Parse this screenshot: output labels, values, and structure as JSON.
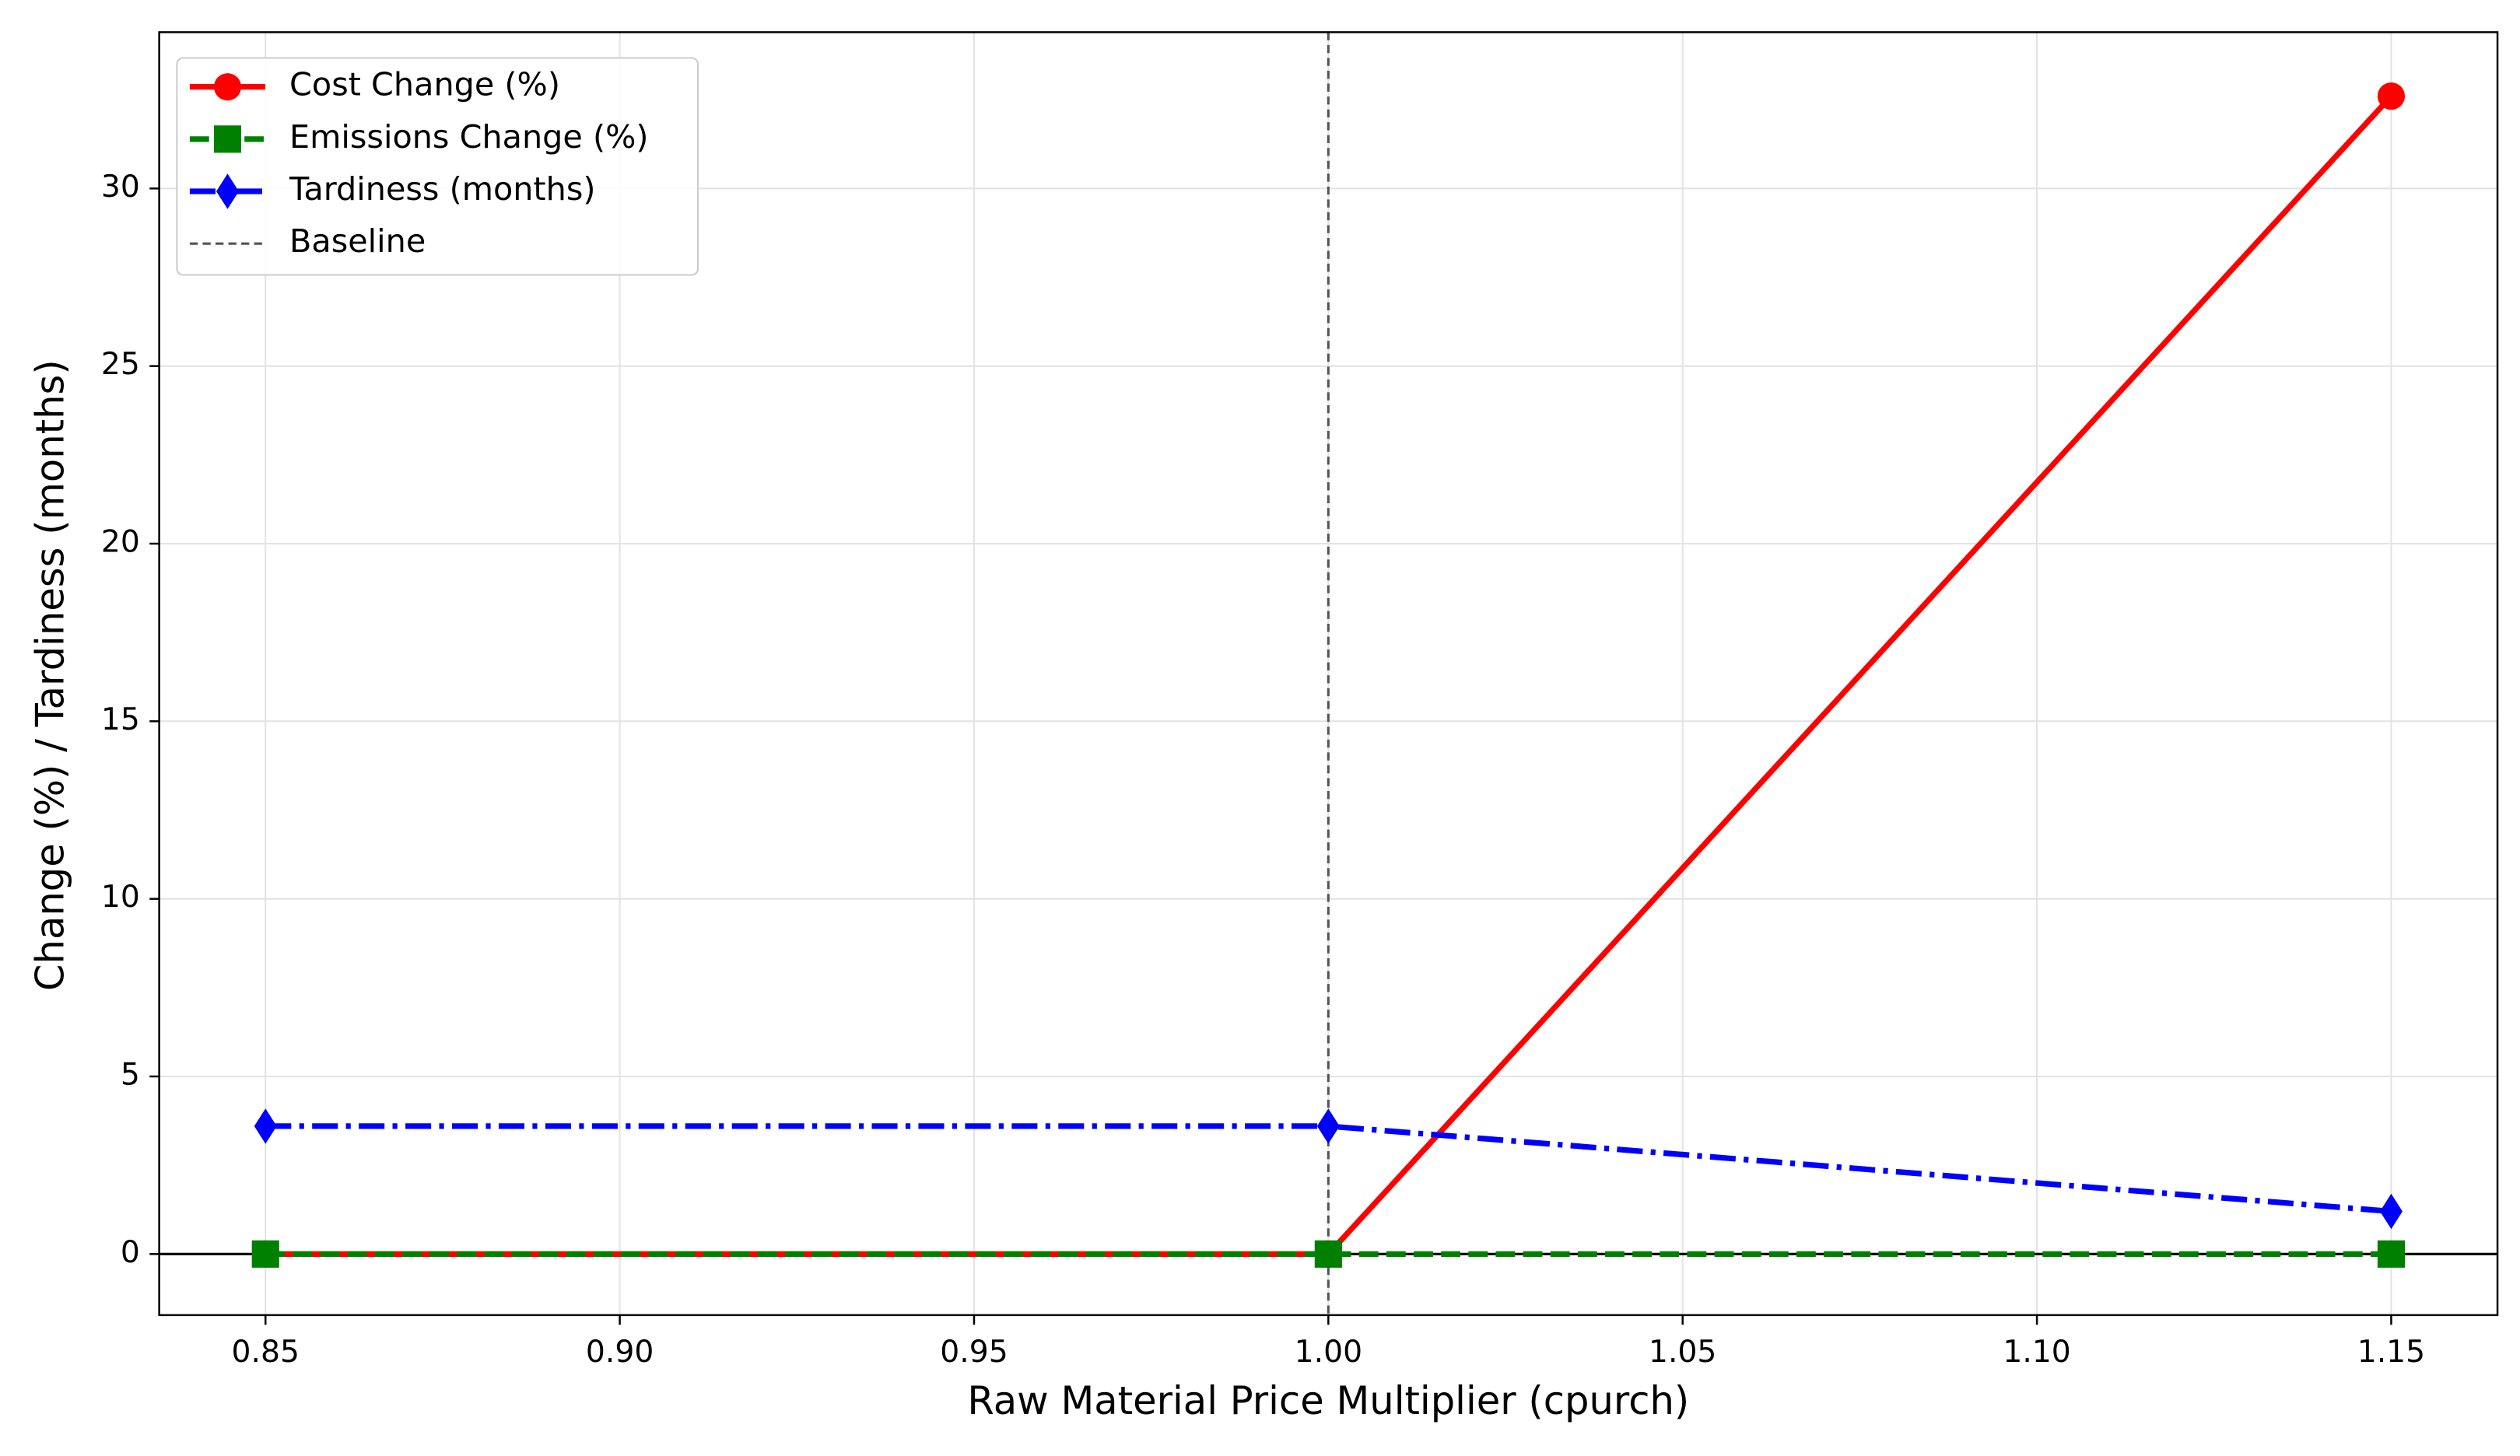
{
  "chart_data": {
    "type": "line",
    "x_label": "Raw Material Price Multiplier (cpurch)",
    "y_label": "Change (%) / Tardiness (months)",
    "x": [
      0.85,
      1.0,
      1.15
    ],
    "series": [
      {
        "name": "Cost Change (%)",
        "color": "#ff0000",
        "marker": "circle",
        "linestyle": "solid",
        "values": [
          0,
          0,
          32.6
        ]
      },
      {
        "name": "Emissions Change (%)",
        "color": "#008000",
        "marker": "square",
        "linestyle": "dashed",
        "values": [
          0,
          0,
          0
        ]
      },
      {
        "name": "Tardiness (months)",
        "color": "#0000ff",
        "marker": "diamond",
        "linestyle": "dashdot",
        "values": [
          3.6,
          3.6,
          1.2
        ]
      }
    ],
    "baseline": {
      "name": "Baseline",
      "x": 1.0,
      "color": "#555555"
    },
    "xlim": [
      0.835,
      1.165
    ],
    "ylim": [
      -1.72,
      34.4
    ],
    "xticks": [
      0.85,
      {
        "value": 0.9,
        "label": "0.90"
      },
      0.95,
      {
        "value": 1.0,
        "label": "1.00"
      },
      1.05,
      {
        "value": 1.1,
        "label": "1.10"
      },
      1.15
    ],
    "yticks": [
      0,
      5,
      10,
      15,
      20,
      25,
      30
    ],
    "grid": true,
    "legend": "upper left"
  }
}
